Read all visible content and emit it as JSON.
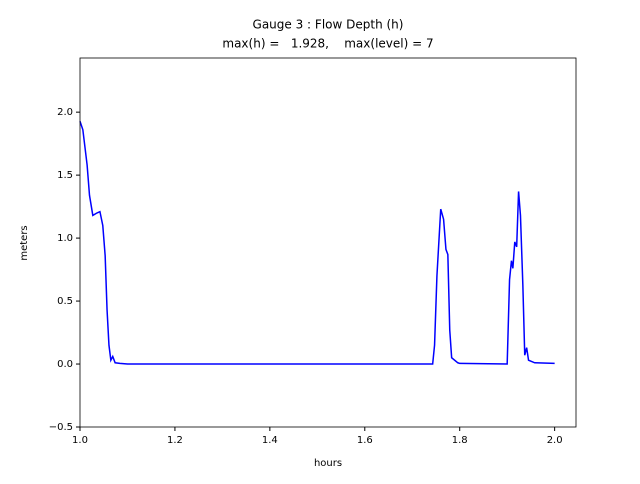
{
  "chart_data": {
    "type": "line",
    "title": "Gauge 3 : Flow Depth (h)",
    "subtitle": "max(h) =   1.928,    max(level) = 7",
    "x_label": "hours",
    "y_label": "meters",
    "x": [
      1.0,
      1.006,
      1.015,
      1.02,
      1.027,
      1.036,
      1.042,
      1.048,
      1.053,
      1.057,
      1.061,
      1.065,
      1.069,
      1.074,
      1.084,
      1.1,
      1.74,
      1.743,
      1.747,
      1.752,
      1.76,
      1.766,
      1.771,
      1.775,
      1.779,
      1.783,
      1.796,
      1.8,
      1.9,
      1.905,
      1.909,
      1.912,
      1.916,
      1.92,
      1.924,
      1.928,
      1.933,
      1.937,
      1.941,
      1.945,
      1.958,
      2.0
    ],
    "series": [
      {
        "name": "h",
        "color": "#0000ff",
        "values": [
          1.928,
          1.86,
          1.58,
          1.34,
          1.18,
          1.2,
          1.21,
          1.1,
          0.86,
          0.43,
          0.15,
          0.03,
          0.06,
          0.01,
          0.005,
          0.0,
          0.0,
          0.0,
          0.15,
          0.7,
          1.23,
          1.15,
          0.91,
          0.87,
          0.27,
          0.05,
          0.01,
          0.005,
          0.0,
          0.67,
          0.82,
          0.76,
          0.97,
          0.93,
          1.37,
          1.18,
          0.63,
          0.07,
          0.13,
          0.03,
          0.01,
          0.005
        ]
      }
    ],
    "xlim": [
      1.0,
      2.045
    ],
    "ylim": [
      -0.5,
      2.43
    ],
    "xticks": [
      {
        "value": 1.0,
        "label": "1.0"
      },
      1.2,
      1.4,
      1.6,
      1.8,
      {
        "value": 2.0,
        "label": "2.0"
      }
    ],
    "yticks": [
      {
        "value": -0.5,
        "label": "−0.5"
      },
      {
        "value": 0.0,
        "label": "0.0"
      },
      0.5,
      {
        "value": 1.0,
        "label": "1.0"
      },
      1.5,
      {
        "value": 2.0,
        "label": "2.0"
      }
    ],
    "grid": false
  }
}
